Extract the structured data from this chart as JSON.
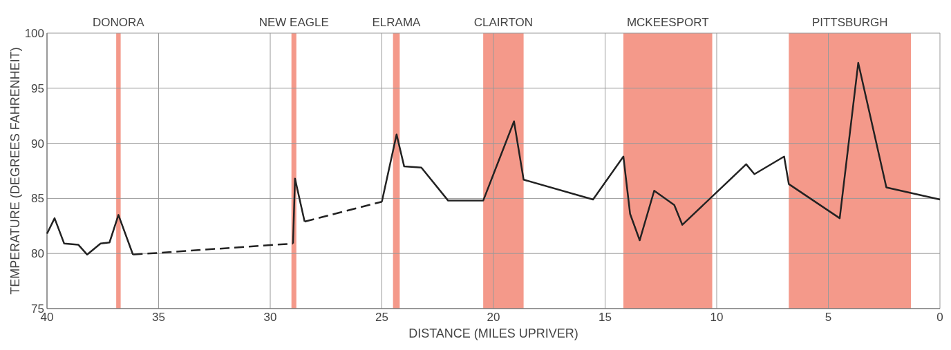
{
  "chart_data": {
    "type": "line",
    "xlabel": "DISTANCE (MILES UPRIVER)",
    "ylabel": "TEMPERATURE (DEGREES FAHRENHEIT)",
    "xlim": [
      40,
      0
    ],
    "xticks": [
      40,
      35,
      30,
      25,
      20,
      15,
      10,
      5,
      0
    ],
    "ylim": [
      75,
      100
    ],
    "yticks": [
      75,
      80,
      85,
      90,
      95,
      100
    ],
    "grid": true,
    "marker": "none",
    "series": [
      {
        "color": "#222222",
        "line_style": "solid",
        "x": [
          40,
          39.66,
          39.23,
          38.6,
          38.2,
          37.6,
          37.2,
          36.8,
          36.15
        ],
        "values": [
          81.8,
          83.2,
          80.9,
          80.8,
          79.9,
          80.9,
          81.0,
          83.5,
          79.9
        ]
      },
      {
        "color": "#222222",
        "line_style": "dashed",
        "x": [
          36.15,
          28.98
        ],
        "values": [
          79.9,
          80.9
        ]
      },
      {
        "color": "#222222",
        "line_style": "solid",
        "x": [
          28.98,
          28.89,
          28.46
        ],
        "values": [
          80.9,
          86.8,
          82.9
        ]
      },
      {
        "color": "#222222",
        "line_style": "dashed",
        "x": [
          28.46,
          25.0
        ],
        "values": [
          82.9,
          84.7
        ]
      },
      {
        "color": "#222222",
        "line_style": "solid",
        "x": [
          25.0,
          24.34,
          24.0,
          23.23,
          22.03,
          20.46,
          19.08,
          18.65,
          15.54,
          14.18,
          13.88,
          13.45,
          12.8,
          11.9,
          11.54,
          8.68,
          8.31,
          6.98,
          6.77,
          4.49,
          3.66,
          2.4,
          0
        ],
        "values": [
          84.7,
          90.8,
          87.9,
          87.8,
          84.8,
          84.8,
          92.0,
          86.7,
          84.9,
          88.8,
          83.6,
          81.2,
          85.7,
          84.4,
          82.6,
          88.1,
          87.2,
          88.8,
          86.3,
          83.2,
          97.3,
          86.0,
          84.9
        ]
      }
    ],
    "bands": [
      {
        "axis": "x",
        "from": 36.9,
        "to": 36.7,
        "label": "DONORA",
        "color": "#f4998a"
      },
      {
        "axis": "x",
        "from": 29.05,
        "to": 28.83,
        "label": "NEW EAGLE",
        "color": "#f4998a"
      },
      {
        "axis": "x",
        "from": 24.5,
        "to": 24.2,
        "label": "ELRAMA",
        "color": "#f4998a"
      },
      {
        "axis": "x",
        "from": 20.46,
        "to": 18.65,
        "label": "CLAIRTON",
        "color": "#f4998a"
      },
      {
        "axis": "x",
        "from": 14.18,
        "to": 10.2,
        "label": "MCKEESPORT",
        "color": "#f4998a"
      },
      {
        "axis": "x",
        "from": 6.77,
        "to": 1.3,
        "label": "PITTSBURGH",
        "color": "#f4998a"
      }
    ]
  }
}
